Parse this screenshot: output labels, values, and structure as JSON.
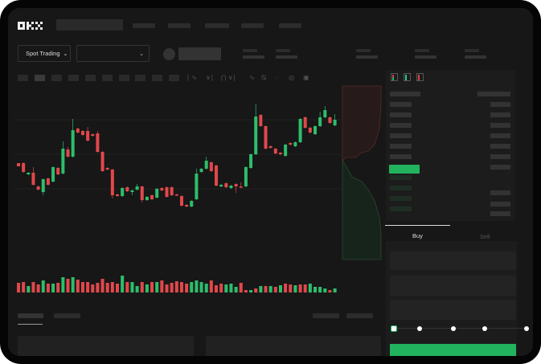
{
  "header": {
    "logo": "OKX"
  },
  "market_bar": {
    "mode_dropdown": "Spot Trading",
    "pair_dropdown": ""
  },
  "order_form": {
    "tabs": [
      {
        "label": "Buy",
        "active": true
      },
      {
        "label": "Sell",
        "active": false
      }
    ],
    "slider_percent": 0,
    "submit_color": "#22b35e"
  },
  "orderbook": {
    "view_icons": [
      "both-sides-icon",
      "bids-only-icon",
      "asks-only-icon"
    ]
  },
  "toolbar": {
    "icons": [
      "line-type-icon",
      "indicator-icon",
      "draw-icon",
      "measure-icon",
      "camera-icon",
      "settings-icon",
      "fullscreen-icon"
    ]
  },
  "colors": {
    "up": "#2ebd6b",
    "down": "#e0484b",
    "background": "#171717"
  },
  "chart_data": {
    "type": "candlestick",
    "title": "",
    "xlabel": "",
    "ylabel": "",
    "grid": true,
    "candles": [
      [
        67,
        63,
        67,
        63
      ],
      [
        67,
        56,
        68,
        55
      ],
      [
        53,
        55,
        56,
        52
      ],
      [
        55,
        40,
        62,
        39
      ],
      [
        38,
        34,
        39,
        33
      ],
      [
        31,
        47,
        48,
        27
      ],
      [
        48,
        40,
        49,
        39
      ],
      [
        44,
        62,
        63,
        43
      ],
      [
        61,
        53,
        62,
        52
      ],
      [
        54,
        85,
        94,
        53
      ],
      [
        84,
        75,
        87,
        74
      ],
      [
        75,
        108,
        122,
        74
      ],
      [
        110,
        105,
        111,
        104
      ],
      [
        107,
        102,
        108,
        101
      ],
      [
        107,
        95,
        112,
        94
      ],
      [
        103,
        101,
        104,
        100
      ],
      [
        104,
        81,
        107,
        80
      ],
      [
        81,
        57,
        82,
        56
      ],
      [
        61,
        59,
        62,
        58
      ],
      [
        59,
        27,
        60,
        23
      ],
      [
        28,
        26,
        29,
        25
      ],
      [
        26,
        36,
        37,
        25
      ],
      [
        37,
        32,
        38,
        31
      ],
      [
        31,
        33,
        34,
        27
      ],
      [
        34,
        38,
        41,
        33
      ],
      [
        38,
        21,
        39,
        18
      ],
      [
        21,
        25,
        26,
        20
      ],
      [
        27,
        22,
        28,
        21
      ],
      [
        24,
        35,
        36,
        23
      ],
      [
        36,
        33,
        37,
        32
      ],
      [
        37,
        25,
        38,
        24
      ],
      [
        37,
        27,
        38,
        26
      ],
      [
        28,
        27,
        29,
        26
      ],
      [
        26,
        14,
        27,
        13
      ],
      [
        15,
        13,
        16,
        12
      ],
      [
        13,
        20,
        21,
        12
      ],
      [
        22,
        54,
        60,
        21
      ],
      [
        56,
        60,
        61,
        55
      ],
      [
        60,
        70,
        75,
        59
      ],
      [
        68,
        57,
        69,
        56
      ],
      [
        64,
        39,
        65,
        38
      ],
      [
        38,
        40,
        41,
        37
      ],
      [
        42,
        37,
        43,
        36
      ],
      [
        36,
        39,
        40,
        35
      ],
      [
        41,
        38,
        42,
        30
      ],
      [
        38,
        37,
        43,
        36
      ],
      [
        38,
        62,
        63,
        37
      ],
      [
        61,
        78,
        79,
        60
      ],
      [
        78,
        125,
        141,
        77
      ],
      [
        127,
        113,
        128,
        112
      ],
      [
        113,
        85,
        114,
        84
      ],
      [
        88,
        86,
        89,
        85
      ],
      [
        85,
        79,
        86,
        78
      ],
      [
        80,
        78,
        81,
        77
      ],
      [
        76,
        90,
        91,
        75
      ],
      [
        92,
        90,
        93,
        89
      ],
      [
        88,
        93,
        94,
        87
      ],
      [
        93,
        122,
        123,
        92
      ],
      [
        124,
        111,
        125,
        110
      ],
      [
        111,
        105,
        112,
        104
      ],
      [
        103,
        113,
        114,
        102
      ],
      [
        113,
        124,
        131,
        112
      ],
      [
        124,
        133,
        138,
        123
      ],
      [
        124,
        117,
        125,
        116
      ],
      [
        114,
        121,
        128,
        113
      ]
    ],
    "candle_fields": [
      "open",
      "close",
      "high",
      "low"
    ],
    "volume": [
      12,
      13,
      8,
      13,
      10,
      15,
      11,
      11,
      12,
      19,
      17,
      19,
      16,
      13,
      13,
      10,
      12,
      17,
      12,
      13,
      11,
      21,
      13,
      13,
      8,
      13,
      10,
      13,
      13,
      15,
      10,
      12,
      14,
      13,
      11,
      13,
      15,
      13,
      11,
      15,
      9,
      11,
      10,
      11,
      7,
      12,
      3,
      3,
      5,
      8,
      8,
      8,
      7,
      9,
      11,
      10,
      9,
      10,
      10,
      11,
      7,
      7,
      5,
      3,
      5
    ],
    "volume_colors": [
      "r",
      "r",
      "g",
      "r",
      "r",
      "g",
      "r",
      "g",
      "r",
      "g",
      "r",
      "g",
      "r",
      "r",
      "r",
      "r",
      "r",
      "r",
      "r",
      "r",
      "r",
      "g",
      "r",
      "g",
      "g",
      "r",
      "g",
      "r",
      "g",
      "r",
      "r",
      "r",
      "r",
      "r",
      "r",
      "g",
      "g",
      "g",
      "g",
      "r",
      "r",
      "r",
      "g",
      "g",
      "g",
      "r",
      "r",
      "g",
      "r",
      "g",
      "r",
      "g",
      "r",
      "g",
      "r",
      "r",
      "g",
      "r",
      "r",
      "g",
      "g",
      "g",
      "g",
      "r",
      "g"
    ]
  }
}
